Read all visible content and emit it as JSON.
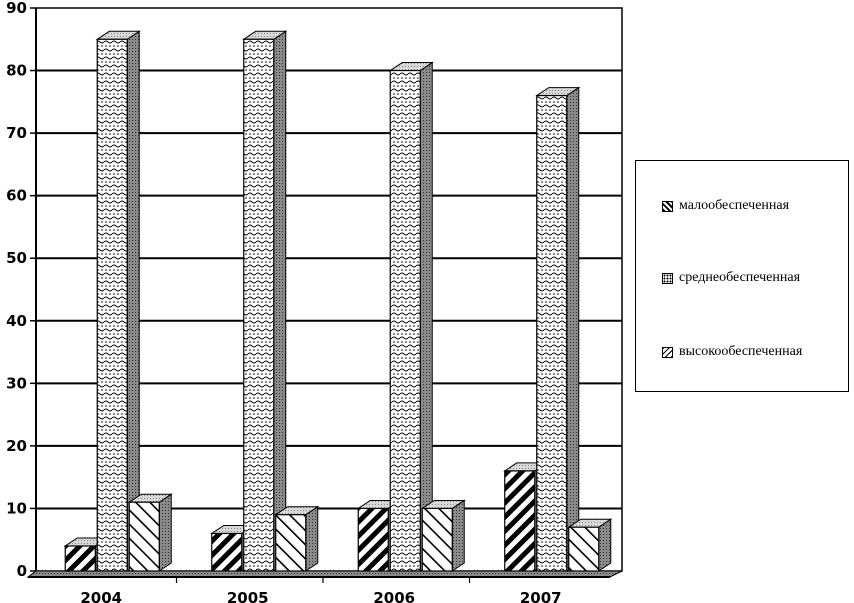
{
  "chart_data": {
    "type": "bar",
    "categories": [
      "2004",
      "2005",
      "2006",
      "2007"
    ],
    "series": [
      {
        "name": "малообеспеченная",
        "values": [
          4,
          6,
          10,
          16
        ],
        "pattern": "diag-dense"
      },
      {
        "name": "среднеобеспеченная",
        "values": [
          85,
          85,
          80,
          76
        ],
        "pattern": "dots-waves"
      },
      {
        "name": "высокообеспеченная",
        "values": [
          11,
          9,
          10,
          7
        ],
        "pattern": "diag-sparse"
      }
    ],
    "ylim": [
      0,
      90
    ],
    "yticks": [
      "0",
      "10",
      "20",
      "30",
      "40",
      "50",
      "60",
      "70",
      "80",
      "90"
    ],
    "grid": true,
    "legend_position": "right",
    "three_d": true
  },
  "legend": {
    "items": [
      "малообеспеченная",
      "среднеобеспеченная",
      "высокообеспеченная"
    ]
  }
}
